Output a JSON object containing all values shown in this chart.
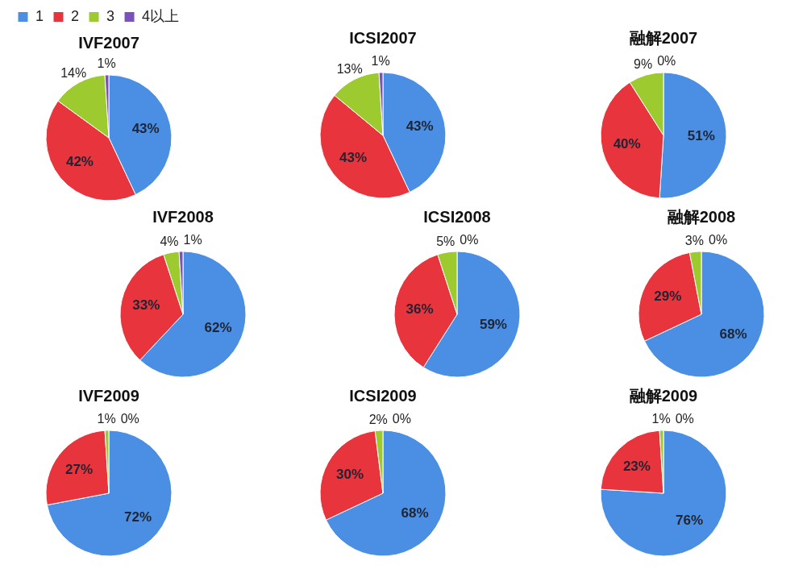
{
  "chart_data": [
    {
      "type": "pie",
      "title": "IVF2007",
      "legend": "top left",
      "categories": [
        "1",
        "2",
        "3",
        "4以上"
      ],
      "values": [
        43,
        42,
        14,
        1
      ],
      "value_labels": [
        "43%",
        "42%",
        "14%",
        "1%"
      ],
      "colors": [
        "#4a8fe3",
        "#e8343c",
        "#9dcb2f",
        "#7b52b9"
      ]
    },
    {
      "type": "pie",
      "title": "ICSI2007",
      "values": [
        43,
        43,
        13,
        1
      ],
      "value_labels": [
        "43%",
        "43%",
        "13%",
        "1%"
      ],
      "colors": [
        "#4a8fe3",
        "#e8343c",
        "#9dcb2f",
        "#7b52b9"
      ]
    },
    {
      "type": "pie",
      "title": "融解2007",
      "values": [
        51,
        40,
        9,
        0
      ],
      "value_labels": [
        "51%",
        "40%",
        "9%",
        "0%"
      ],
      "colors": [
        "#4a8fe3",
        "#e8343c",
        "#9dcb2f",
        "#7b52b9"
      ]
    },
    {
      "type": "pie",
      "title": "IVF2008",
      "values": [
        62,
        33,
        4,
        1
      ],
      "value_labels": [
        "62%",
        "33%",
        "4%",
        "1%"
      ],
      "colors": [
        "#4a8fe3",
        "#e8343c",
        "#9dcb2f",
        "#7b52b9"
      ]
    },
    {
      "type": "pie",
      "title": "ICSI2008",
      "values": [
        59,
        36,
        5,
        0
      ],
      "value_labels": [
        "59%",
        "36%",
        "5%",
        "0%"
      ],
      "colors": [
        "#4a8fe3",
        "#e8343c",
        "#9dcb2f",
        "#7b52b9"
      ]
    },
    {
      "type": "pie",
      "title": "融解2008",
      "values": [
        68,
        29,
        3,
        0
      ],
      "value_labels": [
        "68%",
        "29%",
        "3%",
        "0%"
      ],
      "colors": [
        "#4a8fe3",
        "#e8343c",
        "#9dcb2f",
        "#7b52b9"
      ]
    },
    {
      "type": "pie",
      "title": "IVF2009",
      "values": [
        72,
        27,
        1,
        0
      ],
      "value_labels": [
        "72%",
        "27%",
        "1%",
        "0%"
      ],
      "colors": [
        "#4a8fe3",
        "#e8343c",
        "#9dcb2f",
        "#7b52b9"
      ]
    },
    {
      "type": "pie",
      "title": "ICSI2009",
      "values": [
        68,
        30,
        2,
        0
      ],
      "value_labels": [
        "68%",
        "30%",
        "2%",
        "0%"
      ],
      "colors": [
        "#4a8fe3",
        "#e8343c",
        "#9dcb2f",
        "#7b52b9"
      ]
    },
    {
      "type": "pie",
      "title": "融解2009",
      "values": [
        76,
        23,
        1,
        0
      ],
      "value_labels": [
        "76%",
        "23%",
        "1%",
        "0%"
      ],
      "colors": [
        "#4a8fe3",
        "#e8343c",
        "#9dcb2f",
        "#7b52b9"
      ]
    }
  ]
}
